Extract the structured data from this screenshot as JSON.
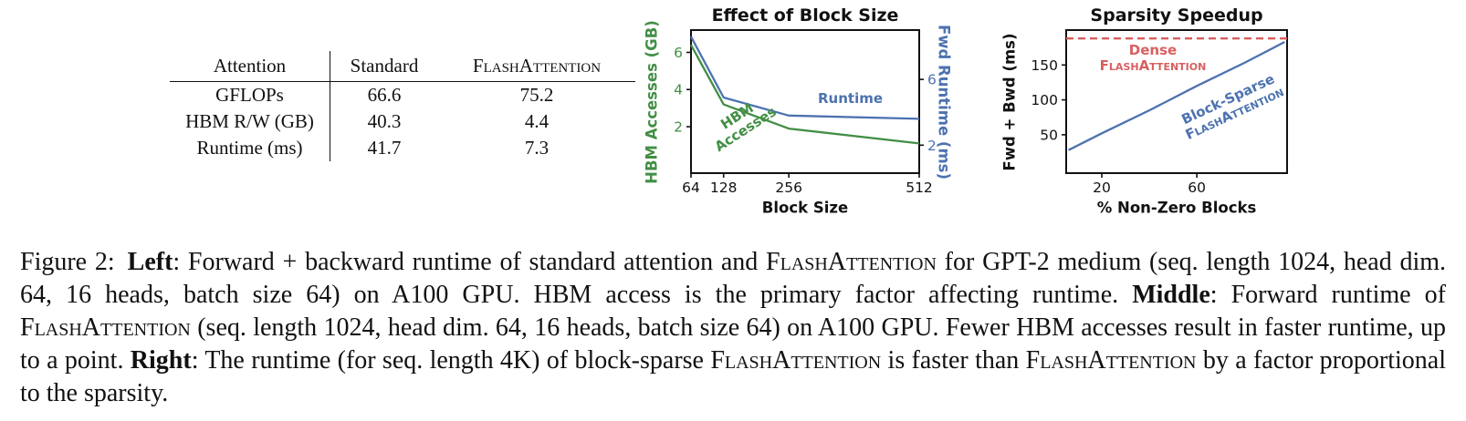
{
  "table": {
    "headers": [
      "Attention",
      "Standard",
      "FlashAttention"
    ],
    "rows": [
      {
        "label": "GFLOPs",
        "standard": "66.6",
        "flash": "75.2"
      },
      {
        "label": "HBM R/W (GB)",
        "standard": "40.3",
        "flash": "4.4"
      },
      {
        "label": "Runtime (ms)",
        "standard": "41.7",
        "flash": "7.3"
      }
    ]
  },
  "chart_data": [
    {
      "type": "line",
      "title": "Effect of Block Size",
      "xlabel": "Block Size",
      "x_range": [
        64,
        512
      ],
      "x_ticks": [
        64,
        128,
        256,
        512
      ],
      "grid": false,
      "axes": {
        "left": {
          "label": "HBM Accesses (GB)",
          "color": "#428f45",
          "range": [
            -0.5,
            7.2
          ],
          "ticks": [
            2,
            4,
            6
          ]
        },
        "right": {
          "label": "Fwd Runtime (ms)",
          "color": "#4c72b0",
          "range": [
            0.3,
            9.0
          ],
          "ticks": [
            2,
            6
          ]
        }
      },
      "series": [
        {
          "name": "HBM Accesses",
          "axis": "left",
          "color": "#428f45",
          "x": [
            64,
            128,
            256,
            512
          ],
          "values": [
            6.4,
            3.2,
            1.9,
            1.1
          ]
        },
        {
          "name": "Runtime",
          "axis": "right",
          "color": "#4c72b0",
          "x": [
            64,
            128,
            256,
            512
          ],
          "values": [
            8.6,
            4.9,
            3.8,
            3.6
          ]
        }
      ],
      "annotations": [
        {
          "text": "HBM\nAccesses",
          "color": "#428f45"
        },
        {
          "text": "Runtime",
          "color": "#4c72b0"
        }
      ]
    },
    {
      "type": "line",
      "title": "Sparsity Speedup",
      "xlabel": "% Non-Zero Blocks",
      "x_range": [
        5,
        98
      ],
      "x_ticks": [
        20,
        60
      ],
      "grid": false,
      "axes": {
        "left": {
          "label": "Fwd + Bwd (ms)",
          "color": "#111111",
          "range": [
            -5,
            200
          ],
          "ticks": [
            50,
            100,
            150
          ]
        }
      },
      "series": [
        {
          "name": "Dense FlashAttention",
          "axis": "left",
          "color": "#d95f5f",
          "style": "dashed",
          "x": [
            5,
            98
          ],
          "values": [
            188,
            188
          ]
        },
        {
          "name": "Block-Sparse FlashAttention",
          "axis": "left",
          "color": "#4c72b0",
          "style": "solid",
          "x": [
            6,
            20,
            40,
            60,
            80,
            97
          ],
          "values": [
            28,
            52,
            85,
            120,
            153,
            183
          ]
        }
      ],
      "annotations": [
        {
          "line1": "Dense",
          "line2": "FlashAttention",
          "color": "#d95f5f"
        },
        {
          "line1": "Block-Sparse",
          "line2": "FlashAttention",
          "color": "#4c72b0"
        }
      ]
    }
  ],
  "caption": {
    "segments": [
      {
        "text": "Figure 2:"
      },
      {
        "text": "Left"
      },
      {
        "text": ": Forward + backward runtime of standard attention and "
      },
      {
        "text": "FlashAttention"
      },
      {
        "text": " for GPT-2 medium (seq. length 1024, head dim. 64, 16 heads, batch size 64) on A100 GPU. HBM access is the primary factor affecting runtime. "
      },
      {
        "text": "Middle"
      },
      {
        "text": ": Forward runtime of "
      },
      {
        "text": "FlashAttention"
      },
      {
        "text": " (seq. length 1024, head dim. 64, 16 heads, batch size 64) on A100 GPU. Fewer HBM accesses result in faster runtime, up to a point. "
      },
      {
        "text": "Right"
      },
      {
        "text": ": The runtime (for seq. length 4K) of block-sparse "
      },
      {
        "text": "FlashAttention"
      },
      {
        "text": " is faster than "
      },
      {
        "text": "FlashAttention"
      },
      {
        "text": " by a factor proportional to the sparsity."
      }
    ]
  }
}
